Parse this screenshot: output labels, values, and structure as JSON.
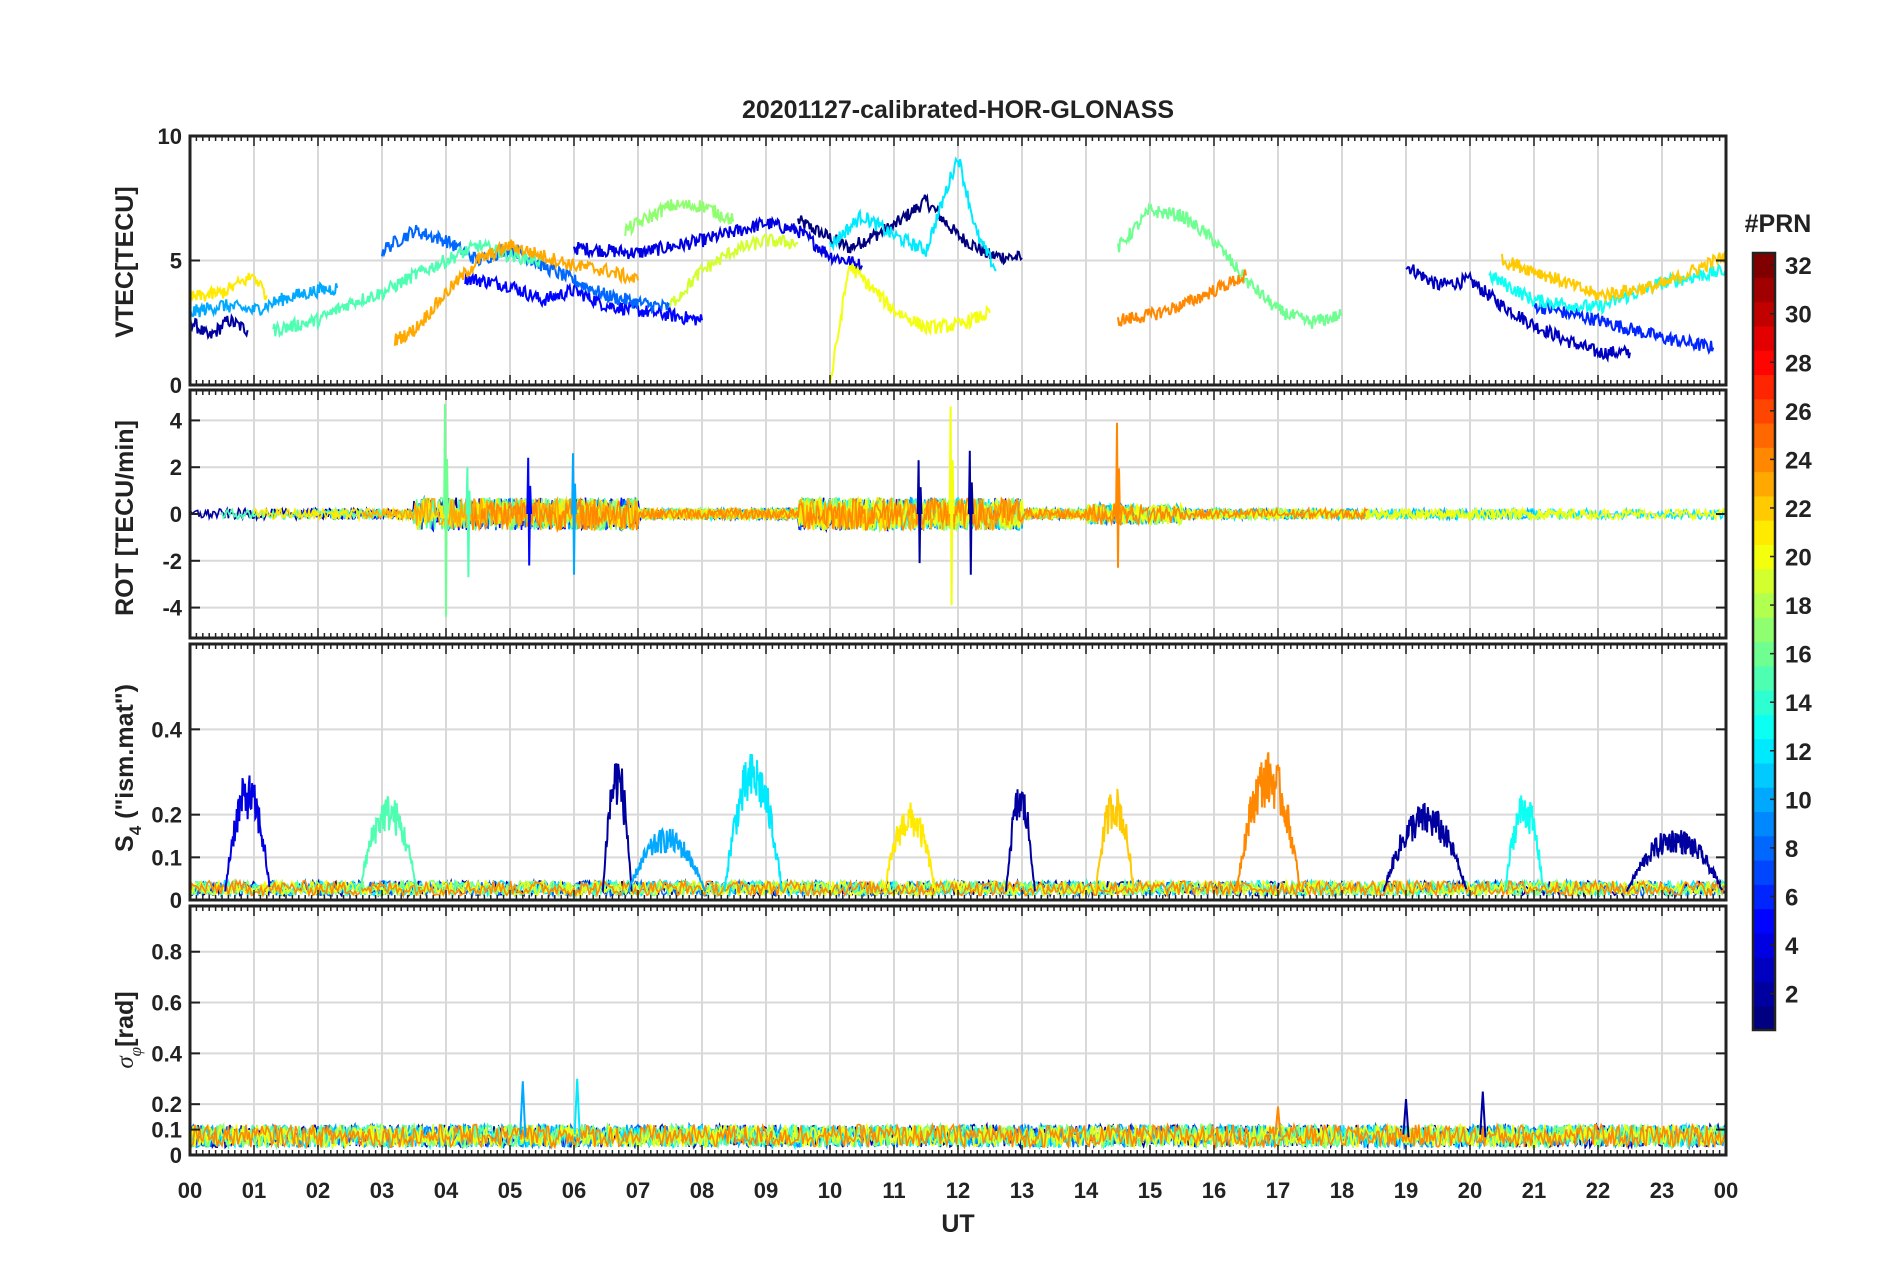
{
  "title": "20201127-calibrated-HOR-GLONASS",
  "x_axis": {
    "label": "UT",
    "ticks": [
      "00",
      "01",
      "02",
      "03",
      "04",
      "05",
      "06",
      "07",
      "08",
      "09",
      "10",
      "11",
      "12",
      "13",
      "14",
      "15",
      "16",
      "17",
      "18",
      "19",
      "20",
      "21",
      "22",
      "23",
      "00"
    ],
    "range_hours": [
      0,
      24
    ]
  },
  "colorbar": {
    "title": "#PRN",
    "colormap": "jet",
    "range": [
      1,
      32
    ],
    "ticks": [
      "2",
      "4",
      "6",
      "8",
      "10",
      "12",
      "14",
      "16",
      "18",
      "20",
      "22",
      "24",
      "26",
      "28",
      "30",
      "32"
    ]
  },
  "chart_data": [
    {
      "type": "line",
      "panel": "vtec",
      "ylabel": "VTEC[TECU]",
      "ylim": [
        0,
        10
      ],
      "ytick_labels": [
        "0",
        "5",
        "10"
      ],
      "grid": true,
      "series": [
        {
          "prn": 1,
          "points": [
            [
              9.5,
              6.6
            ],
            [
              10.3,
              5.5
            ],
            [
              11.0,
              6.4
            ],
            [
              11.5,
              7.4
            ],
            [
              12.0,
              6.0
            ],
            [
              12.5,
              5.2
            ],
            [
              13.0,
              5.1
            ]
          ]
        },
        {
          "prn": 2,
          "points": [
            [
              0.0,
              2.6
            ],
            [
              0.3,
              1.9
            ],
            [
              0.6,
              2.6
            ],
            [
              0.9,
              2.2
            ]
          ]
        },
        {
          "prn": 3,
          "points": [
            [
              19.0,
              4.8
            ],
            [
              19.5,
              4.0
            ],
            [
              20.0,
              4.2
            ],
            [
              20.5,
              3.2
            ],
            [
              21.0,
              2.4
            ],
            [
              21.5,
              1.8
            ],
            [
              22.0,
              1.3
            ],
            [
              22.5,
              1.3
            ]
          ]
        },
        {
          "prn": 4,
          "points": [
            [
              6.0,
              5.5
            ],
            [
              7.0,
              5.3
            ],
            [
              8.0,
              5.8
            ],
            [
              9.0,
              6.5
            ],
            [
              9.5,
              6.2
            ],
            [
              10.0,
              5.2
            ],
            [
              10.5,
              4.8
            ]
          ]
        },
        {
          "prn": 5,
          "points": [
            [
              4.3,
              4.3
            ],
            [
              5.0,
              4.0
            ],
            [
              5.5,
              3.4
            ],
            [
              6.0,
              3.8
            ],
            [
              6.5,
              3.2
            ],
            [
              7.0,
              3.0
            ],
            [
              8.0,
              2.6
            ]
          ]
        },
        {
          "prn": 6,
          "points": [
            [
              21.0,
              3.2
            ],
            [
              22.0,
              2.6
            ],
            [
              23.0,
              1.9
            ],
            [
              23.8,
              1.5
            ]
          ]
        },
        {
          "prn": 8,
          "points": [
            [
              3.0,
              5.4
            ],
            [
              3.5,
              6.2
            ],
            [
              4.0,
              5.8
            ],
            [
              4.5,
              5.0
            ],
            [
              5.0,
              5.5
            ],
            [
              5.5,
              4.8
            ],
            [
              6.0,
              4.2
            ],
            [
              6.5,
              3.6
            ],
            [
              7.0,
              3.3
            ],
            [
              7.5,
              3.1
            ]
          ]
        },
        {
          "prn": 10,
          "points": [
            [
              0.0,
              2.9
            ],
            [
              0.5,
              3.2
            ],
            [
              1.0,
              3.0
            ],
            [
              1.5,
              3.5
            ],
            [
              2.0,
              3.8
            ],
            [
              2.3,
              3.9
            ]
          ]
        },
        {
          "prn": 12,
          "points": [
            [
              10.0,
              5.6
            ],
            [
              10.5,
              6.8
            ],
            [
              11.0,
              6.0
            ],
            [
              11.5,
              5.4
            ],
            [
              12.0,
              9.2
            ],
            [
              12.3,
              6.0
            ],
            [
              12.6,
              4.6
            ]
          ]
        },
        {
          "prn": 13,
          "points": [
            [
              20.3,
              4.4
            ],
            [
              21.0,
              3.4
            ],
            [
              22.0,
              3.1
            ],
            [
              23.0,
              4.1
            ],
            [
              24.0,
              4.6
            ]
          ]
        },
        {
          "prn": 15,
          "points": [
            [
              1.3,
              2.2
            ],
            [
              2.0,
              2.6
            ],
            [
              2.5,
              3.3
            ],
            [
              3.0,
              3.7
            ],
            [
              3.5,
              4.4
            ],
            [
              4.0,
              5.0
            ],
            [
              4.5,
              5.6
            ],
            [
              5.0,
              5.2
            ],
            [
              5.5,
              5.0
            ]
          ]
        },
        {
          "prn": 17,
          "points": [
            [
              6.8,
              6.2
            ],
            [
              7.5,
              7.2
            ],
            [
              8.0,
              7.2
            ],
            [
              8.5,
              6.6
            ]
          ]
        },
        {
          "prn": 16,
          "points": [
            [
              14.5,
              5.5
            ],
            [
              15.0,
              7.0
            ],
            [
              15.5,
              6.8
            ],
            [
              16.0,
              5.8
            ],
            [
              16.5,
              4.2
            ],
            [
              17.0,
              3.0
            ],
            [
              17.5,
              2.5
            ],
            [
              18.0,
              2.8
            ]
          ]
        },
        {
          "prn": 19,
          "points": [
            [
              7.5,
              3.2
            ],
            [
              8.0,
              4.6
            ],
            [
              8.5,
              5.4
            ],
            [
              9.0,
              5.8
            ],
            [
              9.5,
              5.7
            ]
          ]
        },
        {
          "prn": 20,
          "points": [
            [
              10.0,
              0.0
            ],
            [
              10.3,
              4.8
            ],
            [
              11.0,
              3.0
            ],
            [
              11.5,
              2.3
            ],
            [
              12.0,
              2.4
            ],
            [
              12.5,
              2.9
            ]
          ]
        },
        {
          "prn": 21,
          "points": [
            [
              0.0,
              3.5
            ],
            [
              0.5,
              3.7
            ],
            [
              1.0,
              4.4
            ],
            [
              1.2,
              3.6
            ]
          ]
        },
        {
          "prn": 22,
          "points": [
            [
              20.5,
              5.0
            ],
            [
              21.0,
              4.6
            ],
            [
              22.0,
              3.6
            ],
            [
              23.0,
              4.0
            ],
            [
              24.0,
              5.2
            ]
          ]
        },
        {
          "prn": 23,
          "points": [
            [
              3.2,
              1.8
            ],
            [
              3.5,
              2.2
            ],
            [
              4.0,
              3.7
            ],
            [
              4.5,
              5.0
            ],
            [
              5.0,
              5.6
            ],
            [
              5.5,
              5.2
            ],
            [
              6.0,
              4.8
            ],
            [
              6.5,
              4.6
            ],
            [
              7.0,
              4.2
            ]
          ]
        },
        {
          "prn": 24,
          "points": [
            [
              14.5,
              2.6
            ],
            [
              15.0,
              2.8
            ],
            [
              15.5,
              3.2
            ],
            [
              16.0,
              3.8
            ],
            [
              16.5,
              4.4
            ]
          ]
        }
      ]
    },
    {
      "type": "line",
      "panel": "rot",
      "ylabel": "ROT [TECU/min]",
      "ylim": [
        -5.3,
        5.3
      ],
      "ytick_labels": [
        "-4",
        "-2",
        "0",
        "2",
        "4"
      ],
      "grid": true,
      "spikes": [
        {
          "prn": 16,
          "t": 4.0,
          "max": 4.7,
          "min": -4.4
        },
        {
          "prn": 15,
          "t": 4.35,
          "max": 2.0,
          "min": -2.7
        },
        {
          "prn": 5,
          "t": 5.3,
          "max": 2.4,
          "min": -2.2
        },
        {
          "prn": 10,
          "t": 6.0,
          "max": 2.6,
          "min": -2.6
        },
        {
          "prn": 2,
          "t": 11.4,
          "max": 2.3,
          "min": -2.1
        },
        {
          "prn": 20,
          "t": 11.9,
          "max": 4.6,
          "min": -3.9
        },
        {
          "prn": 2,
          "t": 12.2,
          "max": 2.7,
          "min": -2.6
        },
        {
          "prn": 24,
          "t": 14.5,
          "max": 3.9,
          "min": -2.3
        }
      ]
    },
    {
      "type": "line",
      "panel": "s4",
      "ylabel": "S4 (\"ism.mat\")",
      "ylim": [
        0,
        0.6
      ],
      "ytick_labels": [
        "0",
        "0.1",
        "0.2",
        "0.4"
      ],
      "grid": true,
      "events": [
        {
          "prn": 4,
          "t0": 0.7,
          "t1": 1.1,
          "peak": 0.28
        },
        {
          "prn": 15,
          "t0": 2.8,
          "t1": 3.4,
          "peak": 0.23
        },
        {
          "prn": 2,
          "t0": 6.6,
          "t1": 6.75,
          "peak": 0.33
        },
        {
          "prn": 10,
          "t0": 7.0,
          "t1": 7.9,
          "peak": 0.15
        },
        {
          "prn": 12,
          "t0": 8.5,
          "t1": 9.1,
          "peak": 0.33
        },
        {
          "prn": 21,
          "t0": 11.0,
          "t1": 11.5,
          "peak": 0.21
        },
        {
          "prn": 2,
          "t0": 12.9,
          "t1": 13.05,
          "peak": 0.26
        },
        {
          "prn": 22,
          "t0": 14.3,
          "t1": 14.6,
          "peak": 0.25
        },
        {
          "prn": 24,
          "t0": 16.5,
          "t1": 17.2,
          "peak": 0.33
        },
        {
          "prn": 2,
          "t0": 18.8,
          "t1": 19.8,
          "peak": 0.21
        },
        {
          "prn": 13,
          "t0": 20.7,
          "t1": 21.0,
          "peak": 0.24
        },
        {
          "prn": 2,
          "t0": 22.6,
          "t1": 23.8,
          "peak": 0.15
        }
      ]
    },
    {
      "type": "line",
      "panel": "sigma_phi",
      "ylabel": "σφ[rad]",
      "ylim": [
        0,
        0.98
      ],
      "ytick_labels": [
        "0",
        "0.1",
        "0.2",
        "0.4",
        "0.6",
        "0.8"
      ],
      "grid": true,
      "baseline": [
        0.03,
        0.12
      ],
      "peaks": [
        {
          "prn": 10,
          "t": 5.2,
          "peak": 0.29
        },
        {
          "prn": 12,
          "t": 6.05,
          "peak": 0.3
        },
        {
          "prn": 2,
          "t": 19.0,
          "peak": 0.22
        },
        {
          "prn": 2,
          "t": 20.2,
          "peak": 0.25
        },
        {
          "prn": 24,
          "t": 17.0,
          "peak": 0.19
        }
      ]
    }
  ]
}
